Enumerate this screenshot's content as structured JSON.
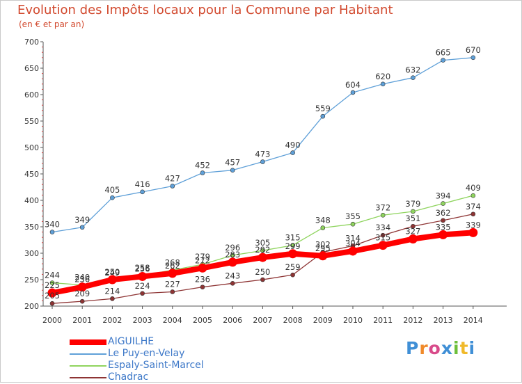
{
  "chart_data": {
    "type": "line",
    "title": "Evolution des Impôts locaux pour la Commune par Habitant",
    "subtitle": "(en € et par an)",
    "xlabel": "",
    "ylabel": "",
    "x": [
      "2000",
      "2001",
      "2002",
      "2003",
      "2004",
      "2005",
      "2006",
      "2007",
      "2008",
      "2009",
      "2010",
      "2011",
      "2012",
      "2013",
      "2014"
    ],
    "ylim": [
      200,
      700
    ],
    "yticks": [
      200,
      250,
      300,
      350,
      400,
      450,
      500,
      550,
      600,
      650,
      700
    ],
    "grid": false,
    "legend_position": "bottom-left",
    "series": [
      {
        "name": "AIGUILHE",
        "color": "#ff0000",
        "emphasis": true,
        "values": [
          225,
          236,
          250,
          256,
          262,
          272,
          283,
          292,
          299,
          295,
          304,
          315,
          327,
          335,
          339
        ],
        "labels": [
          "225",
          "236",
          "250",
          "256",
          "262",
          "272",
          "283",
          "292",
          "299",
          "295",
          "304",
          "315",
          "327",
          "335",
          "339"
        ]
      },
      {
        "name": "Le Puy-en-Velay",
        "color": "#5fa0d8",
        "emphasis": false,
        "values": [
          340,
          349,
          405,
          416,
          427,
          452,
          457,
          473,
          490,
          559,
          604,
          620,
          632,
          665,
          670
        ],
        "labels": [
          "340",
          "349",
          "405",
          "416",
          "427",
          "452",
          "457",
          "473",
          "490",
          "559",
          "604",
          "620",
          "632",
          "665",
          "670"
        ]
      },
      {
        "name": "Espaly-Saint-Marcel",
        "color": "#8fd45e",
        "emphasis": false,
        "values": [
          244,
          240,
          249,
          258,
          268,
          279,
          296,
          305,
          315,
          348,
          355,
          372,
          379,
          394,
          409
        ],
        "labels": [
          "244",
          "240",
          "249",
          "258",
          "268",
          "279",
          "296",
          "305",
          "315",
          "348",
          "355",
          "372",
          "379",
          "394",
          "409"
        ]
      },
      {
        "name": "Chadrac",
        "color": "#8e3434",
        "emphasis": false,
        "values": [
          205,
          209,
          214,
          224,
          227,
          236,
          243,
          250,
          259,
          302,
          314,
          334,
          351,
          362,
          374
        ],
        "labels": [
          "205",
          "209",
          "214",
          "224",
          "227",
          "236",
          "243",
          "250",
          "259",
          "302",
          "314",
          "334",
          "351",
          "362",
          "374"
        ]
      }
    ]
  },
  "brand": {
    "letters": [
      "P",
      "r",
      "o",
      "x",
      "i",
      "t",
      "i"
    ],
    "colors": [
      "#3f8fd6",
      "#f08a2a",
      "#d84a8a",
      "#3f8fd6",
      "#6cbf3a",
      "#f0b92a",
      "#3f8fd6"
    ]
  }
}
